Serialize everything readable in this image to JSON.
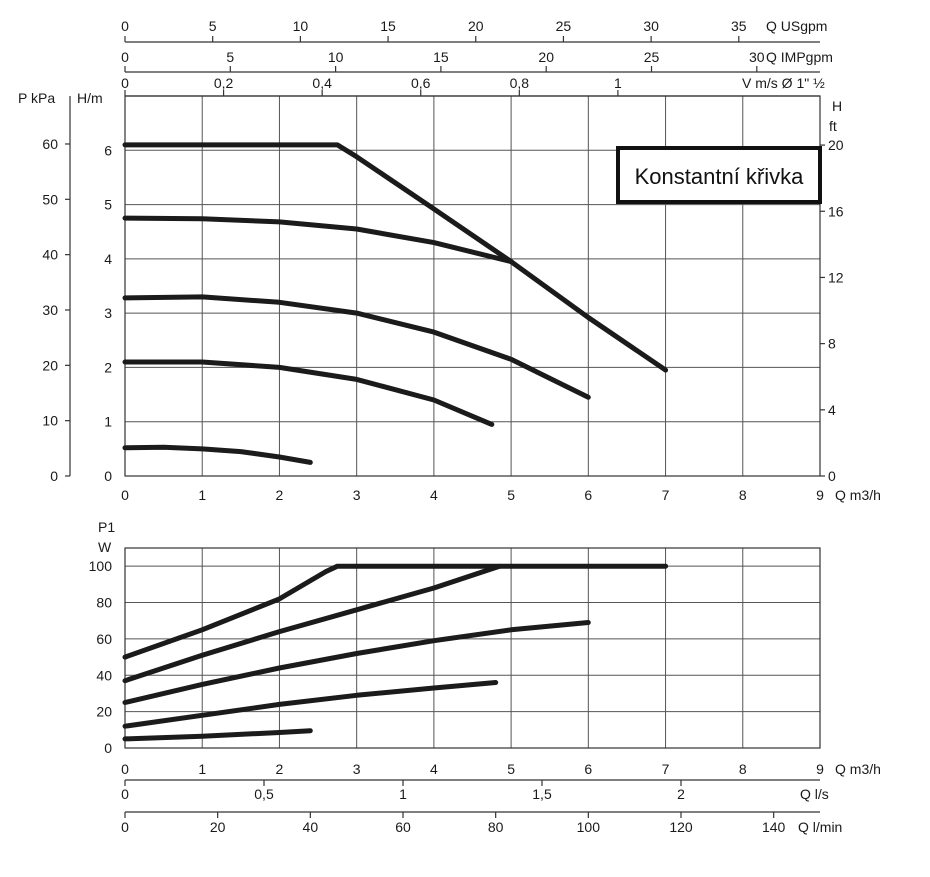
{
  "chart_data": [
    {
      "type": "line",
      "name": "pressure-head",
      "legend_box": "Konstantní křivka",
      "xlabel": "Q m3/h",
      "xlim": [
        0,
        9
      ],
      "x_ticks": [
        "0",
        "1",
        "2",
        "3",
        "4",
        "5",
        "6",
        "7",
        "8",
        "9"
      ],
      "ylabel_left_outer": "P kPa",
      "ylim_left_outer": [
        0,
        70
      ],
      "y_ticks_left_outer": [
        "0",
        "10",
        "20",
        "30",
        "40",
        "50",
        "60"
      ],
      "ylabel_left": "H/m",
      "ylim_left": [
        0,
        7
      ],
      "y_ticks_left": [
        "0",
        "1",
        "2",
        "3",
        "4",
        "5",
        "6"
      ],
      "ylabel_right": "H ft",
      "y_ticks_right": [
        "0",
        "4",
        "8",
        "12",
        "16",
        "20"
      ],
      "top_axes": [
        {
          "label": "Q USgpm",
          "max": 39.63,
          "ticks": [
            "0",
            "5",
            "10",
            "15",
            "20",
            "25",
            "30",
            "35"
          ]
        },
        {
          "label": "Q IMPgpm",
          "max": 33.0,
          "ticks": [
            "0",
            "5",
            "10",
            "15",
            "20",
            "25",
            "30"
          ]
        },
        {
          "label": "V m/s Ø 1\" ½",
          "max": 1.41,
          "ticks": [
            "0",
            "0,2",
            "0,4",
            "0,6",
            "0,8",
            "1"
          ]
        }
      ],
      "grid": true,
      "series": [
        {
          "x": [
            0,
            1,
            2,
            2.75,
            3,
            4,
            5,
            6,
            7
          ],
          "y": [
            6.1,
            6.1,
            6.1,
            6.1,
            5.88,
            4.92,
            3.95,
            2.92,
            1.95
          ]
        },
        {
          "x": [
            0,
            1,
            2,
            3,
            4,
            5
          ],
          "y": [
            4.75,
            4.74,
            4.68,
            4.55,
            4.3,
            3.95
          ]
        },
        {
          "x": [
            0,
            1,
            2,
            3,
            4,
            5,
            6
          ],
          "y": [
            3.28,
            3.3,
            3.2,
            3.0,
            2.65,
            2.15,
            1.45
          ]
        },
        {
          "x": [
            0,
            1,
            2,
            3,
            4,
            4.75
          ],
          "y": [
            2.1,
            2.1,
            2.0,
            1.78,
            1.4,
            0.95
          ]
        },
        {
          "x": [
            0,
            0.5,
            1,
            1.5,
            2,
            2.4
          ],
          "y": [
            0.52,
            0.53,
            0.5,
            0.45,
            0.35,
            0.25
          ]
        }
      ]
    },
    {
      "type": "line",
      "name": "power",
      "xlabel": "Q m3/h",
      "xlim": [
        0,
        9
      ],
      "x_ticks": [
        "0",
        "1",
        "2",
        "3",
        "4",
        "5",
        "6",
        "7",
        "8",
        "9"
      ],
      "ylabel_line1": "P1",
      "ylabel_line2": "W",
      "ylim": [
        0,
        110
      ],
      "y_ticks": [
        "0",
        "20",
        "40",
        "60",
        "80",
        "100"
      ],
      "bottom_axes": [
        {
          "label": "Q l/s",
          "max": 2.5,
          "ticks": [
            "0",
            "0,5",
            "1",
            "1,5",
            "2"
          ]
        },
        {
          "label": "Q l/min",
          "max": 150,
          "ticks": [
            "0",
            "20",
            "40",
            "60",
            "80",
            "100",
            "120",
            "140"
          ]
        }
      ],
      "grid": true,
      "series": [
        {
          "x": [
            0,
            1,
            2,
            2.6,
            2.75,
            3,
            4,
            5,
            6,
            7
          ],
          "y": [
            50,
            65,
            82,
            97,
            100,
            100,
            100,
            100,
            100,
            100
          ]
        },
        {
          "x": [
            0,
            1,
            2,
            3,
            4,
            4.85
          ],
          "y": [
            37,
            51,
            64,
            76,
            88,
            100
          ]
        },
        {
          "x": [
            0,
            1,
            2,
            3,
            4,
            5,
            6
          ],
          "y": [
            25,
            35,
            44,
            52,
            59,
            65,
            69
          ]
        },
        {
          "x": [
            0,
            1,
            2,
            3,
            4,
            4.8
          ],
          "y": [
            12,
            18,
            24,
            29,
            33,
            36
          ]
        },
        {
          "x": [
            0,
            1,
            2,
            2.4
          ],
          "y": [
            5,
            6.5,
            8.5,
            9.5
          ]
        }
      ]
    }
  ]
}
